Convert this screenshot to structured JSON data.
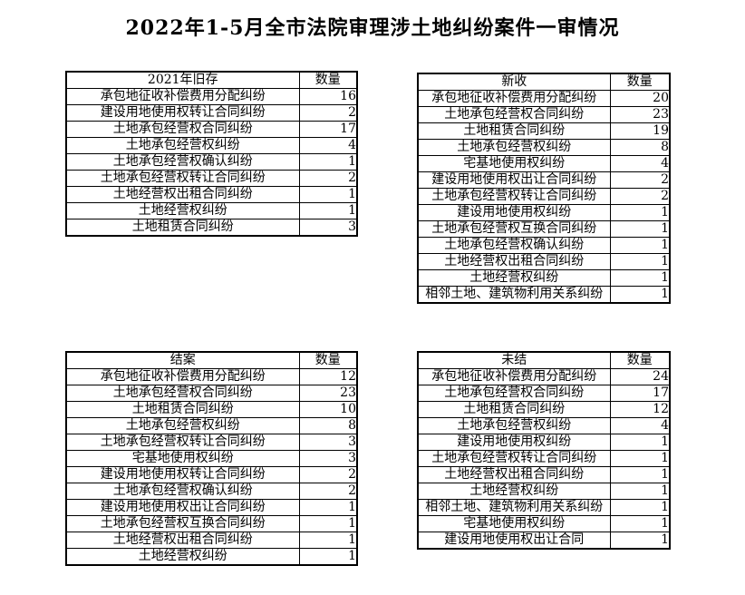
{
  "page": {
    "title": "2022年1-5月全市法院审理涉土地纠纷案件一审情况",
    "text_color": "#000000",
    "background_color": "#ffffff",
    "border_color": "#000000"
  },
  "tables": [
    {
      "name": "2021-carryover",
      "title": "2021年旧存",
      "qty_label": "数量",
      "rows": [
        {
          "label": "承包地征收补偿费用分配纠纷",
          "value": "16"
        },
        {
          "label": "建设用地使用权转让合同纠纷",
          "value": "2"
        },
        {
          "label": "土地承包经营权合同纠纷",
          "value": "17"
        },
        {
          "label": "土地承包经营权纠纷",
          "value": "4"
        },
        {
          "label": "土地承包经营权确认纠纷",
          "value": "1"
        },
        {
          "label": "土地承包经营权转让合同纠纷",
          "value": "2"
        },
        {
          "label": "土地经营权出租合同纠纷",
          "value": "1"
        },
        {
          "label": "土地经营权纠纷",
          "value": "1"
        },
        {
          "label": "土地租赁合同纠纷",
          "value": "3"
        }
      ]
    },
    {
      "name": "newly-received",
      "title": "新收",
      "qty_label": "数量",
      "rows": [
        {
          "label": "承包地征收补偿费用分配纠纷",
          "value": "20"
        },
        {
          "label": "土地承包经营权合同纠纷",
          "value": "23"
        },
        {
          "label": "土地租赁合同纠纷",
          "value": "19"
        },
        {
          "label": "土地承包经营权纠纷",
          "value": "8"
        },
        {
          "label": "宅基地使用权纠纷",
          "value": "4"
        },
        {
          "label": "建设用地使用权出让合同纠纷",
          "value": "2"
        },
        {
          "label": "土地承包经营权转让合同纠纷",
          "value": "2"
        },
        {
          "label": "建设用地使用权纠纷",
          "value": "1"
        },
        {
          "label": "土地承包经营权互换合同纠纷",
          "value": "1"
        },
        {
          "label": "土地承包经营权确认纠纷",
          "value": "1"
        },
        {
          "label": "土地经营权出租合同纠纷",
          "value": "1"
        },
        {
          "label": "土地经营权纠纷",
          "value": "1"
        },
        {
          "label": "相邻土地、建筑物利用关系纠纷",
          "value": "1"
        }
      ]
    },
    {
      "name": "closed",
      "title": "结案",
      "qty_label": "数量",
      "rows": [
        {
          "label": "承包地征收补偿费用分配纠纷",
          "value": "12"
        },
        {
          "label": "土地承包经营权合同纠纷",
          "value": "23"
        },
        {
          "label": "土地租赁合同纠纷",
          "value": "10"
        },
        {
          "label": "土地承包经营权纠纷",
          "value": "8"
        },
        {
          "label": "土地承包经营权转让合同纠纷",
          "value": "3"
        },
        {
          "label": "宅基地使用权纠纷",
          "value": "3"
        },
        {
          "label": "建设用地使用权转让合同纠纷",
          "value": "2"
        },
        {
          "label": "土地承包经营权确认纠纷",
          "value": "2"
        },
        {
          "label": "建设用地使用权出让合同纠纷",
          "value": "1"
        },
        {
          "label": "土地承包经营权互换合同纠纷",
          "value": "1"
        },
        {
          "label": "土地经营权出租合同纠纷",
          "value": "1"
        },
        {
          "label": "土地经营权纠纷",
          "value": "1"
        }
      ]
    },
    {
      "name": "pending",
      "title": "未结",
      "qty_label": "数量",
      "rows": [
        {
          "label": "承包地征收补偿费用分配纠纷",
          "value": "24"
        },
        {
          "label": "土地承包经营权合同纠纷",
          "value": "17"
        },
        {
          "label": "土地租赁合同纠纷",
          "value": "12"
        },
        {
          "label": "土地承包经营权纠纷",
          "value": "4"
        },
        {
          "label": "建设用地使用权纠纷",
          "value": "1"
        },
        {
          "label": "土地承包经营权转让合同纠纷",
          "value": "1"
        },
        {
          "label": "土地经营权出租合同纠纷",
          "value": "1"
        },
        {
          "label": "土地经营权纠纷",
          "value": "1"
        },
        {
          "label": "相邻土地、建筑物利用关系纠纷",
          "value": "1"
        },
        {
          "label": "宅基地使用权纠纷",
          "value": "1"
        },
        {
          "label": "建设用地使用权出让合同",
          "value": "1"
        }
      ]
    }
  ]
}
